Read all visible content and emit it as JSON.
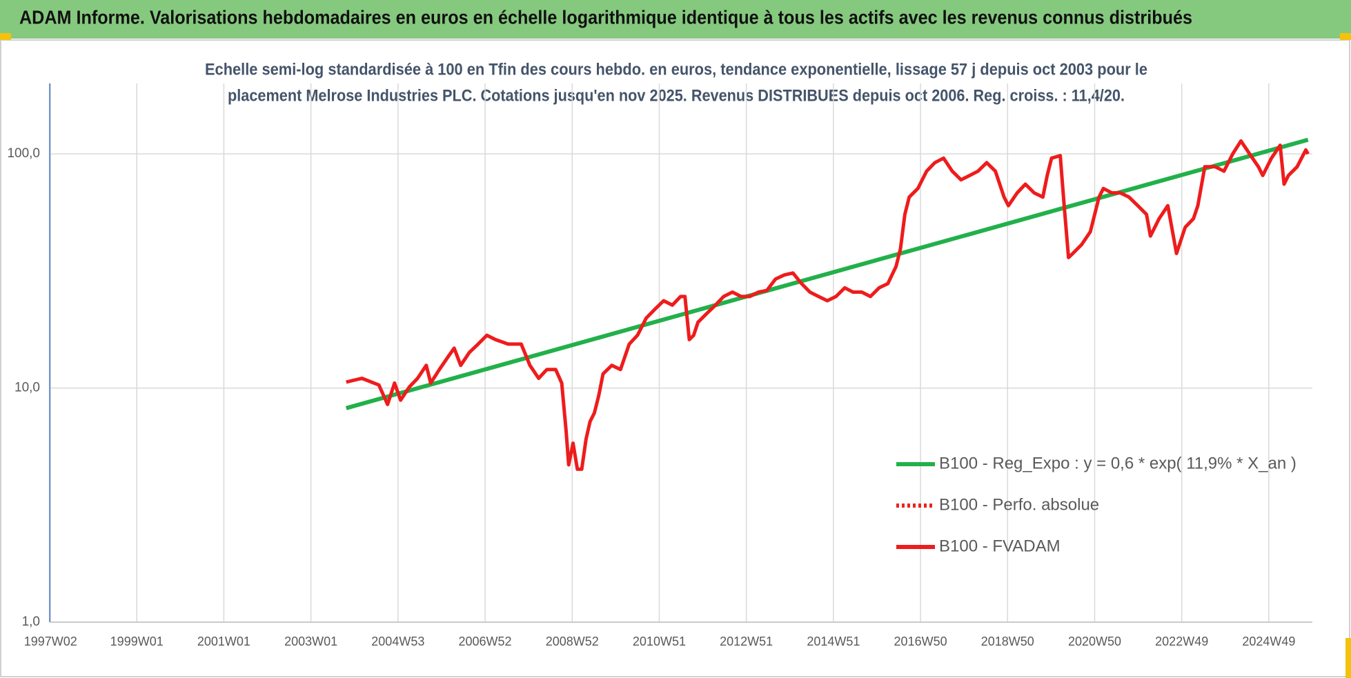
{
  "chart_data": {
    "type": "line",
    "title": "ADAM Informe. Valorisations hebdomadaires en euros en échelle logarithmique identique à tous les actifs avec les revenus connus distribués",
    "subtitle": [
      "Echelle semi-log standardisée à 100 en Tfin des cours hebdo. en euros, tendance exponentielle, lissage 57 j depuis oct 2003 pour le",
      "placement Melrose Industries PLC. Cotations jusqu'en nov 2025. Revenus DISTRIBUES depuis oct 2006. Reg. croiss. : 11,4/20."
    ],
    "log_y": true,
    "grid": true,
    "legend": "lower right",
    "xlim": [
      1997,
      2026
    ],
    "xticks": [
      {
        "value": 1997.02,
        "label": "1997W02"
      },
      {
        "value": 1999.0,
        "label": "1999W01"
      },
      {
        "value": 2001.0,
        "label": "2001W01"
      },
      {
        "value": 2003.0,
        "label": "2003W01"
      },
      {
        "value": 2005.0,
        "label": "2004W53"
      },
      {
        "value": 2007.0,
        "label": "2006W52"
      },
      {
        "value": 2009.0,
        "label": "2008W52"
      },
      {
        "value": 2011.0,
        "label": "2010W51"
      },
      {
        "value": 2013.0,
        "label": "2012W51"
      },
      {
        "value": 2015.0,
        "label": "2014W51"
      },
      {
        "value": 2017.0,
        "label": "2016W50"
      },
      {
        "value": 2019.0,
        "label": "2018W50"
      },
      {
        "value": 2021.0,
        "label": "2020W50"
      },
      {
        "value": 2023.0,
        "label": "2022W49"
      },
      {
        "value": 2025.0,
        "label": "2024W49"
      }
    ],
    "ylim": [
      1,
      200
    ],
    "yticks": [
      {
        "value": 1,
        "label": "1,0"
      },
      {
        "value": 10,
        "label": "10,0"
      },
      {
        "value": 100,
        "label": "100,0"
      }
    ],
    "series": [
      {
        "name": "B100 - Reg_Expo : y = 0,6 * exp( 11,9% *  X_an )",
        "color": "#22b04a",
        "style": "solid",
        "x": [
          2003.81,
          2025.9
        ],
        "values": [
          8.2,
          115
        ]
      },
      {
        "name": "B100 - Perfo. absolue",
        "color": "#e8251f",
        "style": "dotted",
        "x": [],
        "values": []
      },
      {
        "name": "B100 - FVADAM",
        "color": "#ee1c1c",
        "style": "solid",
        "x": [
          2003.81,
          2004.17,
          2004.56,
          2004.76,
          2004.92,
          2005.06,
          2005.26,
          2005.45,
          2005.65,
          2005.75,
          2005.95,
          2006.15,
          2006.29,
          2006.44,
          2006.64,
          2006.84,
          2007.04,
          2007.24,
          2007.53,
          2007.83,
          2008.03,
          2008.23,
          2008.42,
          2008.62,
          2008.76,
          2008.86,
          2008.92,
          2009.02,
          2009.12,
          2009.22,
          2009.32,
          2009.41,
          2009.51,
          2009.61,
          2009.71,
          2009.91,
          2010.11,
          2010.31,
          2010.5,
          2010.7,
          2010.9,
          2011.1,
          2011.3,
          2011.49,
          2011.59,
          2011.69,
          2011.79,
          2011.89,
          2012.09,
          2012.29,
          2012.48,
          2012.68,
          2012.88,
          2013.08,
          2013.28,
          2013.47,
          2013.67,
          2013.87,
          2014.07,
          2014.27,
          2014.46,
          2014.66,
          2014.86,
          2015.06,
          2015.26,
          2015.45,
          2015.65,
          2015.85,
          2016.05,
          2016.25,
          2016.44,
          2016.54,
          2016.64,
          2016.74,
          2016.94,
          2017.14,
          2017.33,
          2017.53,
          2017.73,
          2017.93,
          2018.13,
          2018.32,
          2018.52,
          2018.72,
          2018.92,
          2019.02,
          2019.22,
          2019.41,
          2019.61,
          2019.81,
          2019.91,
          2020.01,
          2020.21,
          2020.3,
          2020.4,
          2020.5,
          2020.7,
          2020.9,
          2021.1,
          2021.2,
          2021.39,
          2021.59,
          2021.79,
          2021.99,
          2022.19,
          2022.28,
          2022.48,
          2022.68,
          2022.88,
          2023.08,
          2023.27,
          2023.37,
          2023.53,
          2023.77,
          2023.97,
          2024.17,
          2024.36,
          2024.56,
          2024.76,
          2024.86,
          2025.06,
          2025.26,
          2025.35,
          2025.45,
          2025.65,
          2025.85,
          2025.9
        ],
        "values": [
          10.6,
          11.0,
          10.3,
          8.51,
          10.5,
          8.88,
          10.1,
          11.0,
          12.5,
          10.5,
          12.0,
          13.6,
          14.8,
          12.5,
          14.2,
          15.4,
          16.8,
          16.1,
          15.4,
          15.4,
          12.5,
          11.0,
          12.0,
          12.0,
          10.5,
          6.59,
          4.7,
          5.81,
          4.5,
          4.5,
          6.06,
          7.18,
          7.82,
          9.27,
          11.5,
          12.5,
          12.0,
          15.4,
          16.8,
          19.9,
          21.7,
          23.6,
          22.6,
          24.6,
          24.6,
          16.1,
          16.8,
          19.1,
          20.8,
          22.6,
          24.6,
          25.7,
          24.6,
          24.6,
          25.7,
          26.1,
          29.2,
          30.4,
          31.0,
          27.9,
          25.7,
          24.6,
          23.6,
          24.6,
          26.8,
          25.7,
          25.7,
          24.6,
          26.8,
          27.9,
          33.1,
          39.3,
          55.2,
          65.4,
          71.2,
          84.4,
          91.8,
          95.9,
          84.4,
          77.5,
          80.9,
          84.4,
          91.8,
          84.4,
          65.4,
          60.1,
          68.2,
          74.3,
          68.2,
          65.4,
          80.9,
          95.9,
          98.4,
          60.1,
          36.1,
          37.6,
          41.0,
          46.5,
          65.4,
          71.2,
          68.2,
          68.2,
          65.4,
          60.1,
          55.2,
          44.6,
          52.9,
          60.1,
          37.6,
          48.6,
          52.9,
          60.1,
          88.1,
          88.1,
          84.4,
          100,
          113.6,
          100,
          88.1,
          80.9,
          95.9,
          108.9,
          74.3,
          80.9,
          88.1,
          104,
          100
        ]
      }
    ]
  }
}
